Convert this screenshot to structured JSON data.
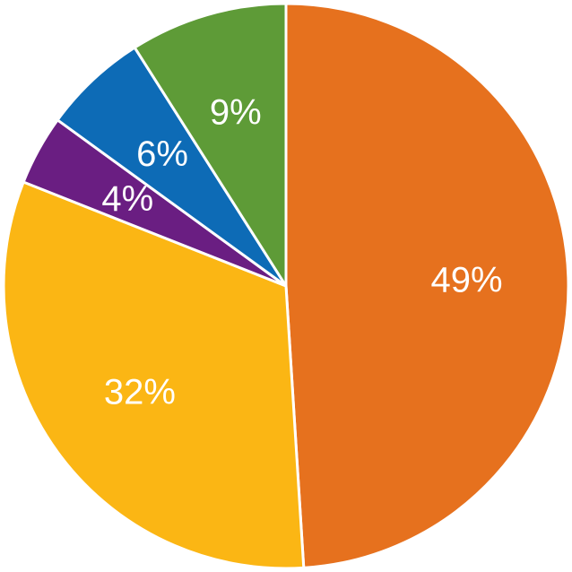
{
  "chart_data": {
    "type": "pie",
    "start_angle_deg": 0,
    "direction": "clockwise",
    "slices": [
      {
        "label": "49%",
        "value": 49,
        "color": "#E6711E"
      },
      {
        "label": "32%",
        "value": 32,
        "color": "#FBB614"
      },
      {
        "label": "4%",
        "value": 4,
        "color": "#6A1E82"
      },
      {
        "label": "6%",
        "value": 6,
        "color": "#0D6BB6"
      },
      {
        "label": "9%",
        "value": 9,
        "color": "#5E9B37"
      }
    ]
  }
}
